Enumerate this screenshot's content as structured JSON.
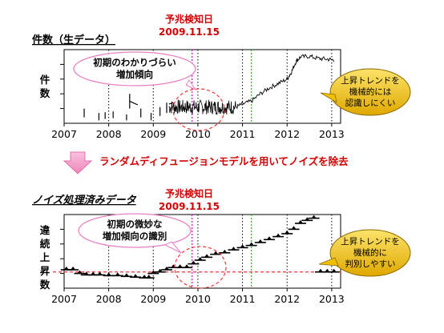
{
  "chart_data": [
    {
      "type": "line",
      "title": "件数（生データ）",
      "ylabel": "件数",
      "xlim": [
        2007.0,
        2013.2
      ],
      "ylim": [
        0,
        100
      ],
      "x_ticks": [
        "2007",
        "2008",
        "2009",
        "2010",
        "2011",
        "2012",
        "2013"
      ],
      "x_tick_values": [
        2007,
        2008,
        2009,
        2010,
        2011,
        2012,
        2013
      ],
      "ylim_note": "",
      "vlines_dotted_black": [
        2008.0,
        2009.0,
        2010.0,
        2011.0,
        2012.0,
        2013.0
      ],
      "vline_magenta": {
        "x": 2009.87,
        "label": "予兆検知日",
        "date": "2009.11.15"
      },
      "vline_green": 2011.2,
      "series": [
        {
          "segments": [
            [
              [
                2007.45,
                20
              ],
              [
                2007.45,
                8
              ]
            ],
            [
              [
                2007.78,
                14
              ],
              [
                2007.78,
                4
              ]
            ],
            [
              [
                2007.92,
                15
              ],
              [
                2007.92,
                6
              ]
            ],
            [
              [
                2008.1,
                16
              ],
              [
                2008.1,
                7
              ]
            ],
            [
              [
                2008.4,
                12
              ],
              [
                2008.4,
                4
              ]
            ],
            [
              [
                2008.47,
                40
              ],
              [
                2008.47,
                20
              ]
            ],
            [
              [
                2008.47,
                30
              ],
              [
                2008.65,
                25
              ]
            ],
            [
              [
                2008.72,
                20
              ],
              [
                2008.72,
                8
              ]
            ],
            [
              [
                2008.95,
                14
              ],
              [
                2008.95,
                4
              ]
            ],
            [
              [
                2009.15,
                22
              ],
              [
                2009.15,
                10
              ]
            ],
            [
              [
                2009.3,
                28
              ],
              [
                2009.3,
                14
              ]
            ],
            [
              [
                2009.35,
                26
              ],
              [
                2009.45,
                28
              ]
            ]
          ],
          "noisy_band": {
            "x_start": 2009.35,
            "x_end": 2010.85,
            "center": 22,
            "amp": 10
          },
          "rising": [
            [
              2010.85,
              22
            ],
            [
              2011.0,
              26
            ],
            [
              2011.2,
              30
            ],
            [
              2011.4,
              40
            ],
            [
              2011.6,
              48
            ],
            [
              2011.8,
              54
            ],
            [
              2012.0,
              60
            ],
            [
              2012.1,
              70
            ],
            [
              2012.2,
              84
            ],
            [
              2012.3,
              90
            ],
            [
              2012.5,
              91
            ],
            [
              2012.7,
              88
            ],
            [
              2012.9,
              87
            ],
            [
              2013.05,
              86
            ]
          ]
        }
      ],
      "annotations": {
        "ellipse_label": "初期のわかりづらい\n増加傾向",
        "callout": "上昇トレンドを\n機械的には\n認識しにくい"
      }
    },
    {
      "type": "step",
      "title": "ノイズ処理済みデータ",
      "ylabel": "違続上昇数",
      "xlim": [
        2007.0,
        2013.2
      ],
      "ylim": [
        0,
        100
      ],
      "x_ticks": [
        "2007",
        "2008",
        "2009",
        "2010",
        "2011",
        "2012",
        "2013"
      ],
      "x_tick_values": [
        2007,
        2008,
        2009,
        2010,
        2011,
        2012,
        2013
      ],
      "vlines_dotted_black": [
        2008.0,
        2009.0,
        2010.0,
        2011.0,
        2012.0,
        2013.0
      ],
      "vline_magenta": {
        "x": 2009.87,
        "label": "予兆検知日",
        "date": "2009.11.15"
      },
      "vline_green": 2011.2,
      "hline_red_dashed": 22,
      "steps": [
        [
          2007.05,
          25
        ],
        [
          2007.2,
          25
        ],
        [
          2007.35,
          20
        ],
        [
          2007.5,
          18
        ],
        [
          2007.65,
          18
        ],
        [
          2007.8,
          18
        ],
        [
          2008.0,
          17
        ],
        [
          2008.2,
          17
        ],
        [
          2008.4,
          16
        ],
        [
          2008.6,
          15
        ],
        [
          2008.8,
          14
        ],
        [
          2008.9,
          14
        ],
        [
          2009.0,
          20
        ],
        [
          2009.15,
          22
        ],
        [
          2009.3,
          25
        ],
        [
          2009.45,
          28
        ],
        [
          2009.6,
          28
        ],
        [
          2009.75,
          28
        ],
        [
          2009.9,
          33
        ],
        [
          2010.05,
          38
        ],
        [
          2010.2,
          42
        ],
        [
          2010.4,
          46
        ],
        [
          2010.6,
          48
        ],
        [
          2010.8,
          52
        ],
        [
          2011.0,
          55
        ],
        [
          2011.2,
          58
        ],
        [
          2011.4,
          62
        ],
        [
          2011.6,
          66
        ],
        [
          2011.8,
          70
        ],
        [
          2012.0,
          74
        ],
        [
          2012.15,
          80
        ],
        [
          2012.3,
          88
        ],
        [
          2012.45,
          92
        ],
        [
          2012.6,
          95
        ],
        [
          2012.75,
          22
        ],
        [
          2012.9,
          22
        ],
        [
          2013.05,
          22
        ]
      ],
      "annotations": {
        "ellipse_label": "初期の微妙な\n増加傾向の識別",
        "callout": "上昇トレンドを\n機械的に\n判別しやすい"
      }
    }
  ],
  "arrow_caption": "ランダムディフュージョンモデルを用いてノイズを除去",
  "colors": {
    "magenta": "#e000e0",
    "green": "#22bb22",
    "red_label": "#d00000",
    "dashed_red": "#ff3333",
    "pink_arrow": "#f2a0c8",
    "callout_fill": "#f2c200",
    "callout_stroke": "#8a6a00"
  }
}
